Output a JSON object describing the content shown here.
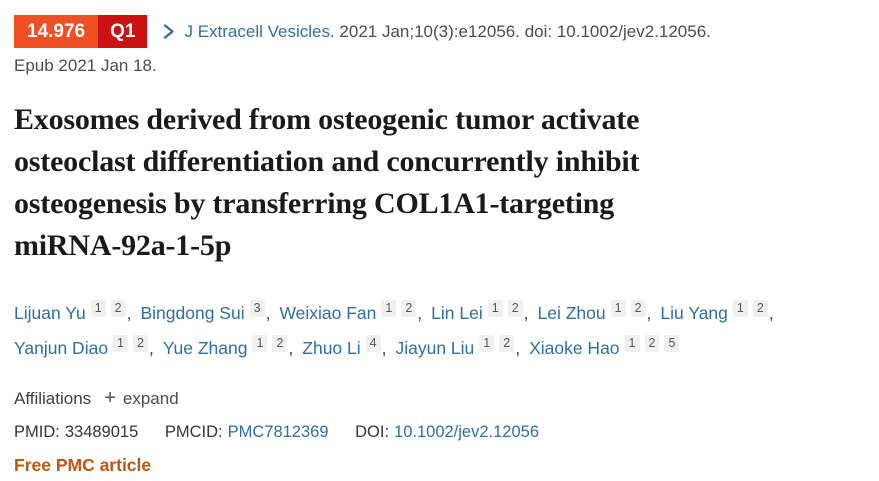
{
  "scholarscope": {
    "impact_factor": "14.976",
    "quartile": "Q1",
    "impact_factor_bg": "#f04e23",
    "quartile_bg": "#cb1111"
  },
  "citation": {
    "journal": "J Extracell Vesicles",
    "detail": ". 2021 Jan;10(3):e12056. doi: 10.1002/jev2.12056.",
    "epub": "Epub 2021 Jan 18."
  },
  "title": {
    "full": "Exosomes derived from osteogenic tumor activate osteoclast differentiation and concurrently inhibit osteogenesis by transferring COL1A1-targeting miRNA-92a-1-5p",
    "lines": [
      "Exosomes derived from osteogenic tumor activate",
      "osteoclast differentiation and concurrently inhibit",
      "osteogenesis by transferring COL1A1-targeting",
      "miRNA-92a-1-5p"
    ]
  },
  "authors": [
    {
      "name": "Lijuan Yu",
      "sups": [
        "1",
        "2"
      ]
    },
    {
      "name": "Bingdong Sui",
      "sups": [
        "3"
      ]
    },
    {
      "name": "Weixiao Fan",
      "sups": [
        "1",
        "2"
      ]
    },
    {
      "name": "Lin Lei",
      "sups": [
        "1",
        "2"
      ]
    },
    {
      "name": "Lei Zhou",
      "sups": [
        "1",
        "2"
      ]
    },
    {
      "name": "Liu Yang",
      "sups": [
        "1",
        "2"
      ]
    },
    {
      "name": "Yanjun Diao",
      "sups": [
        "1",
        "2"
      ]
    },
    {
      "name": "Yue Zhang",
      "sups": [
        "1",
        "2"
      ]
    },
    {
      "name": "Zhuo Li",
      "sups": [
        "4"
      ]
    },
    {
      "name": "Jiayun Liu",
      "sups": [
        "1",
        "2"
      ]
    },
    {
      "name": "Xiaoke Hao",
      "sups": [
        "1",
        "2",
        "5"
      ]
    }
  ],
  "affiliations": {
    "label": "Affiliations",
    "expand_icon": "+",
    "expand_label": "expand"
  },
  "ids": {
    "pmid_label": "PMID:",
    "pmid_value": "33489015",
    "pmcid_label": "PMCID:",
    "pmcid_value": "PMC7812369",
    "doi_label": "DOI:",
    "doi_value": "10.1002/jev2.12056"
  },
  "free_pmc_label": "Free PMC article",
  "colors": {
    "link_blue": "#2e6fa8",
    "text_dark": "#33373b",
    "text_gray": "#4a4e53",
    "title_text": "#1a1a1a",
    "free_pmc": "#bd5611",
    "sup_bg": "#f0f0f1"
  }
}
